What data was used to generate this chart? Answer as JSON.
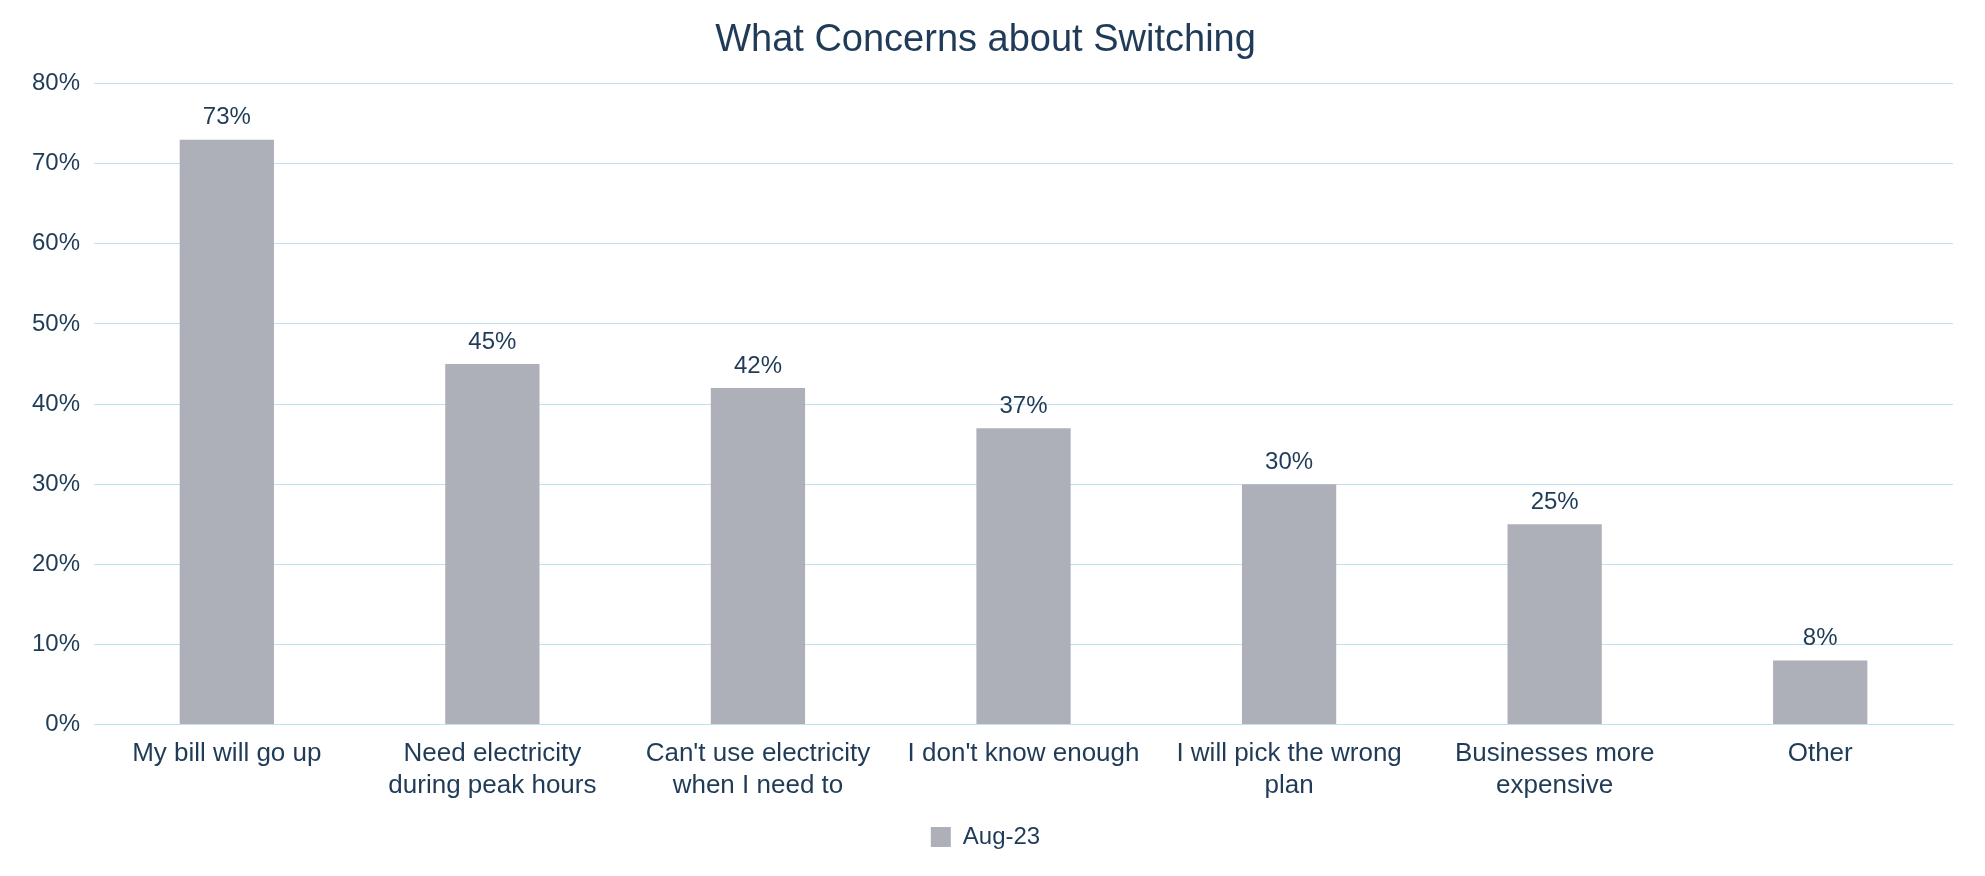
{
  "chart_data": {
    "type": "bar",
    "title": "What Concerns about Switching",
    "categories": [
      "My bill will go up",
      "Need electricity during peak hours",
      "Can't use electricity when I need to",
      "I don't know enough",
      "I will pick the wrong plan",
      "Businesses more expensive",
      "Other"
    ],
    "series": [
      {
        "name": "Aug-23",
        "color": "#adb0b8",
        "values": [
          73,
          45,
          42,
          37,
          30,
          25,
          8
        ],
        "value_labels": [
          "73%",
          "45%",
          "42%",
          "37%",
          "30%",
          "25%",
          "8%"
        ]
      }
    ],
    "ylim": [
      0,
      80
    ],
    "yticks": [
      {
        "value": 0,
        "label": "0%"
      },
      {
        "value": 10,
        "label": "10%"
      },
      {
        "value": 20,
        "label": "20%"
      },
      {
        "value": 30,
        "label": "30%"
      },
      {
        "value": 40,
        "label": "40%"
      },
      {
        "value": 50,
        "label": "50%"
      },
      {
        "value": 60,
        "label": "60%"
      },
      {
        "value": 70,
        "label": "70%"
      },
      {
        "value": 80,
        "label": "80%"
      }
    ],
    "grid": "y",
    "legend": "bottom"
  }
}
